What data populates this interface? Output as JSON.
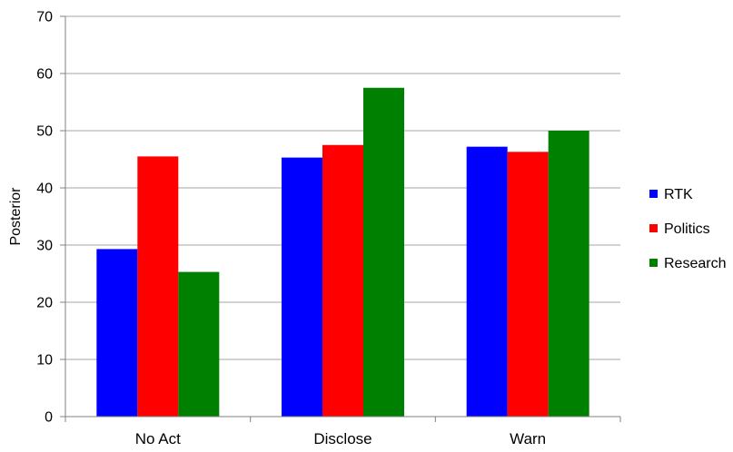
{
  "chart_data": {
    "type": "bar",
    "title": "",
    "xlabel": "",
    "ylabel": "Posterior",
    "ylim": [
      0,
      70
    ],
    "yticks": [
      0,
      10,
      20,
      30,
      40,
      50,
      60,
      70
    ],
    "grid": true,
    "legend_position": "right",
    "categories": [
      "No Act",
      "Disclose",
      "Warn"
    ],
    "series": [
      {
        "name": "RTK",
        "color": "#0000ff",
        "values": [
          29.3,
          45.3,
          47.2
        ]
      },
      {
        "name": "Politics",
        "color": "#ff0000",
        "values": [
          45.5,
          47.5,
          46.3
        ]
      },
      {
        "name": "Research",
        "color": "#008000",
        "values": [
          25.3,
          57.5,
          50.0
        ]
      }
    ]
  }
}
